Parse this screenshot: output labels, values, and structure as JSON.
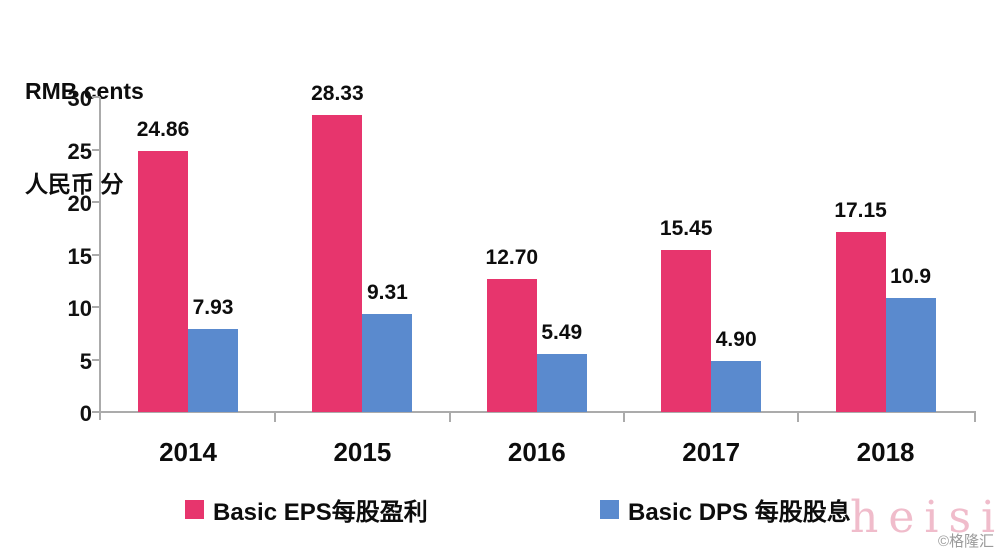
{
  "chart_data": {
    "type": "bar",
    "title_lines": [
      "RMB cents",
      "人民币 分"
    ],
    "categories": [
      "2014",
      "2015",
      "2016",
      "2017",
      "2018"
    ],
    "series": [
      {
        "name": "Basic EPS每股盈利",
        "color": "#e7356d",
        "values": [
          24.86,
          28.33,
          12.7,
          15.45,
          17.15
        ],
        "labels": [
          "24.86",
          "28.33",
          "12.70",
          "15.45",
          "17.15"
        ]
      },
      {
        "name": "Basic DPS 每股股息",
        "color": "#5a8ace",
        "values": [
          7.93,
          9.31,
          5.49,
          4.9,
          10.9
        ],
        "labels": [
          "7.93",
          "9.31",
          "5.49",
          "4.90",
          "10.9"
        ]
      }
    ],
    "xlabel": "",
    "ylabel": "RMB cents 人民币 分",
    "ylim": [
      0,
      30
    ],
    "yticks": [
      0,
      5,
      10,
      15,
      20,
      25,
      30
    ],
    "grid": false,
    "legend_position": "bottom"
  },
  "watermark": {
    "brand": "heisi",
    "credit": "©格隆汇"
  }
}
